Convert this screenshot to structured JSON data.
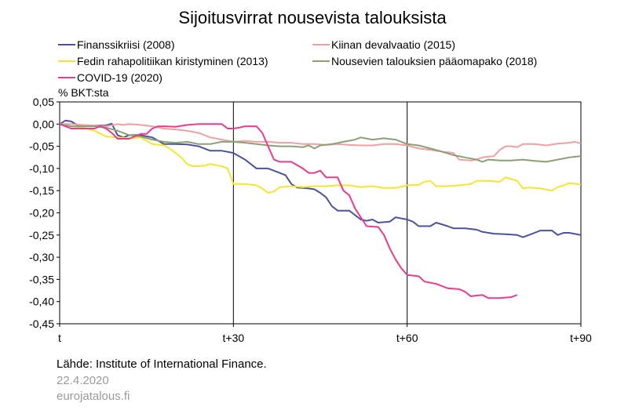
{
  "chart_data": {
    "type": "line",
    "title": "Sijoitusvirrat nousevista talouksista",
    "ylabel": "% BKT:sta",
    "xlabel": "",
    "xlim": [
      0,
      90
    ],
    "ylim": [
      -0.45,
      0.05
    ],
    "yticks": [
      "0,05",
      "0,00",
      "-0,05",
      "-0,10",
      "-0,15",
      "-0,20",
      "-0,25",
      "-0,30",
      "-0,35",
      "-0,40",
      "-0,45"
    ],
    "ytick_values": [
      0.05,
      0.0,
      -0.05,
      -0.1,
      -0.15,
      -0.2,
      -0.25,
      -0.3,
      -0.35,
      -0.4,
      -0.45
    ],
    "xticks": [
      {
        "value": 0,
        "label": "t"
      },
      {
        "value": 30,
        "label": "t+30"
      },
      {
        "value": 60,
        "label": "t+60"
      },
      {
        "value": 90,
        "label": "t+90"
      }
    ],
    "grid": "vertical-at-30-60",
    "legend_position": "top",
    "series": [
      {
        "name": "Finanssikriisi (2008)",
        "color": "#4a52a0",
        "points": [
          [
            0,
            0
          ],
          [
            1,
            0.008
          ],
          [
            2,
            0.006
          ],
          [
            3,
            -0.002
          ],
          [
            4,
            -0.004
          ],
          [
            6,
            -0.003
          ],
          [
            8,
            -0.003
          ],
          [
            9,
            0.001
          ],
          [
            10,
            -0.025
          ],
          [
            11,
            -0.03
          ],
          [
            12,
            -0.025
          ],
          [
            14,
            -0.025
          ],
          [
            16,
            -0.03
          ],
          [
            18,
            -0.045
          ],
          [
            20,
            -0.045
          ],
          [
            22,
            -0.046
          ],
          [
            24,
            -0.05
          ],
          [
            26,
            -0.06
          ],
          [
            28,
            -0.06
          ],
          [
            30,
            -0.065
          ],
          [
            32,
            -0.08
          ],
          [
            34,
            -0.1
          ],
          [
            36,
            -0.1
          ],
          [
            38,
            -0.11
          ],
          [
            39,
            -0.115
          ],
          [
            40,
            -0.135
          ],
          [
            41,
            -0.143
          ],
          [
            43,
            -0.145
          ],
          [
            44,
            -0.147
          ],
          [
            45,
            -0.155
          ],
          [
            46,
            -0.165
          ],
          [
            47,
            -0.185
          ],
          [
            48,
            -0.195
          ],
          [
            50,
            -0.195
          ],
          [
            52,
            -0.215
          ],
          [
            53,
            -0.218
          ],
          [
            54,
            -0.215
          ],
          [
            55,
            -0.222
          ],
          [
            57,
            -0.22
          ],
          [
            58,
            -0.21
          ],
          [
            60,
            -0.215
          ],
          [
            61,
            -0.22
          ],
          [
            62,
            -0.23
          ],
          [
            64,
            -0.23
          ],
          [
            65,
            -0.222
          ],
          [
            67,
            -0.23
          ],
          [
            68,
            -0.235
          ],
          [
            70,
            -0.235
          ],
          [
            72,
            -0.238
          ],
          [
            73,
            -0.243
          ],
          [
            75,
            -0.247
          ],
          [
            77,
            -0.248
          ],
          [
            79,
            -0.25
          ],
          [
            80,
            -0.255
          ],
          [
            81,
            -0.25
          ],
          [
            82,
            -0.245
          ],
          [
            83,
            -0.24
          ],
          [
            85,
            -0.24
          ],
          [
            86,
            -0.25
          ],
          [
            87,
            -0.245
          ],
          [
            88,
            -0.245
          ],
          [
            90,
            -0.25
          ]
        ]
      },
      {
        "name": "Kiinan devalvaatio (2015)",
        "color": "#f0a0a0",
        "points": [
          [
            0,
            0
          ],
          [
            2,
            0
          ],
          [
            4,
            -0.002
          ],
          [
            6,
            -0.003
          ],
          [
            8,
            -0.005
          ],
          [
            10,
            0.0
          ],
          [
            11,
            -0.002
          ],
          [
            12,
            0.0
          ],
          [
            14,
            -0.002
          ],
          [
            16,
            -0.005
          ],
          [
            18,
            -0.01
          ],
          [
            20,
            -0.012
          ],
          [
            22,
            -0.015
          ],
          [
            24,
            -0.02
          ],
          [
            26,
            -0.03
          ],
          [
            28,
            -0.035
          ],
          [
            30,
            -0.04
          ],
          [
            32,
            -0.038
          ],
          [
            34,
            -0.04
          ],
          [
            36,
            -0.04
          ],
          [
            38,
            -0.042
          ],
          [
            40,
            -0.042
          ],
          [
            42,
            -0.045
          ],
          [
            44,
            -0.045
          ],
          [
            46,
            -0.047
          ],
          [
            48,
            -0.045
          ],
          [
            50,
            -0.047
          ],
          [
            52,
            -0.048
          ],
          [
            54,
            -0.048
          ],
          [
            56,
            -0.045
          ],
          [
            58,
            -0.045
          ],
          [
            60,
            -0.048
          ],
          [
            62,
            -0.055
          ],
          [
            64,
            -0.058
          ],
          [
            66,
            -0.062
          ],
          [
            68,
            -0.065
          ],
          [
            69,
            -0.08
          ],
          [
            71,
            -0.082
          ],
          [
            72,
            -0.08
          ],
          [
            73,
            -0.075
          ],
          [
            75,
            -0.072
          ],
          [
            76,
            -0.058
          ],
          [
            77,
            -0.05
          ],
          [
            78,
            -0.05
          ],
          [
            79,
            -0.052
          ],
          [
            80,
            -0.045
          ],
          [
            82,
            -0.045
          ],
          [
            84,
            -0.048
          ],
          [
            86,
            -0.044
          ],
          [
            88,
            -0.042
          ],
          [
            89,
            -0.04
          ],
          [
            90,
            -0.044
          ]
        ]
      },
      {
        "name": "Fedin rahapolitiikan kiristyminen (2013)",
        "color": "#f5e530",
        "points": [
          [
            0,
            0
          ],
          [
            2,
            -0.005
          ],
          [
            4,
            -0.008
          ],
          [
            6,
            -0.015
          ],
          [
            8,
            -0.028
          ],
          [
            10,
            -0.03
          ],
          [
            12,
            -0.032
          ],
          [
            14,
            -0.03
          ],
          [
            16,
            -0.045
          ],
          [
            18,
            -0.048
          ],
          [
            19,
            -0.055
          ],
          [
            20,
            -0.065
          ],
          [
            21,
            -0.075
          ],
          [
            22,
            -0.09
          ],
          [
            23,
            -0.095
          ],
          [
            25,
            -0.094
          ],
          [
            26,
            -0.09
          ],
          [
            28,
            -0.095
          ],
          [
            29,
            -0.1
          ],
          [
            30,
            -0.135
          ],
          [
            32,
            -0.135
          ],
          [
            34,
            -0.138
          ],
          [
            35,
            -0.145
          ],
          [
            36,
            -0.155
          ],
          [
            37,
            -0.152
          ],
          [
            38,
            -0.142
          ],
          [
            40,
            -0.14
          ],
          [
            42,
            -0.142
          ],
          [
            44,
            -0.14
          ],
          [
            46,
            -0.14
          ],
          [
            48,
            -0.138
          ],
          [
            50,
            -0.138
          ],
          [
            52,
            -0.142
          ],
          [
            54,
            -0.14
          ],
          [
            56,
            -0.144
          ],
          [
            58,
            -0.144
          ],
          [
            60,
            -0.138
          ],
          [
            62,
            -0.137
          ],
          [
            63,
            -0.13
          ],
          [
            64,
            -0.128
          ],
          [
            65,
            -0.14
          ],
          [
            67,
            -0.14
          ],
          [
            69,
            -0.138
          ],
          [
            71,
            -0.135
          ],
          [
            72,
            -0.128
          ],
          [
            74,
            -0.128
          ],
          [
            76,
            -0.13
          ],
          [
            77,
            -0.12
          ],
          [
            79,
            -0.128
          ],
          [
            80,
            -0.145
          ],
          [
            81,
            -0.143
          ],
          [
            83,
            -0.145
          ],
          [
            85,
            -0.15
          ],
          [
            86,
            -0.142
          ],
          [
            87,
            -0.138
          ],
          [
            88,
            -0.133
          ],
          [
            90,
            -0.136
          ]
        ]
      },
      {
        "name": "Nousevien talouksien pääomapako (2018)",
        "color": "#8aa078",
        "points": [
          [
            0,
            0
          ],
          [
            2,
            -0.005
          ],
          [
            4,
            -0.005
          ],
          [
            6,
            -0.005
          ],
          [
            8,
            -0.008
          ],
          [
            10,
            -0.015
          ],
          [
            12,
            -0.025
          ],
          [
            14,
            -0.028
          ],
          [
            16,
            -0.035
          ],
          [
            18,
            -0.04
          ],
          [
            20,
            -0.042
          ],
          [
            22,
            -0.04
          ],
          [
            24,
            -0.045
          ],
          [
            26,
            -0.045
          ],
          [
            28,
            -0.04
          ],
          [
            30,
            -0.04
          ],
          [
            32,
            -0.042
          ],
          [
            34,
            -0.045
          ],
          [
            36,
            -0.048
          ],
          [
            38,
            -0.05
          ],
          [
            40,
            -0.05
          ],
          [
            42,
            -0.052
          ],
          [
            43,
            -0.048
          ],
          [
            44,
            -0.055
          ],
          [
            45,
            -0.048
          ],
          [
            47,
            -0.045
          ],
          [
            49,
            -0.04
          ],
          [
            51,
            -0.035
          ],
          [
            52,
            -0.03
          ],
          [
            54,
            -0.035
          ],
          [
            56,
            -0.032
          ],
          [
            58,
            -0.035
          ],
          [
            60,
            -0.045
          ],
          [
            62,
            -0.048
          ],
          [
            64,
            -0.055
          ],
          [
            66,
            -0.062
          ],
          [
            68,
            -0.07
          ],
          [
            70,
            -0.075
          ],
          [
            72,
            -0.08
          ],
          [
            73,
            -0.085
          ],
          [
            74,
            -0.08
          ],
          [
            76,
            -0.082
          ],
          [
            78,
            -0.082
          ],
          [
            80,
            -0.08
          ],
          [
            82,
            -0.083
          ],
          [
            84,
            -0.085
          ],
          [
            86,
            -0.08
          ],
          [
            88,
            -0.075
          ],
          [
            90,
            -0.072
          ]
        ]
      },
      {
        "name": "COVID-19 (2020)",
        "color": "#e83c8c",
        "points": [
          [
            0,
            0
          ],
          [
            2,
            -0.01
          ],
          [
            4,
            -0.01
          ],
          [
            6,
            -0.01
          ],
          [
            7,
            -0.005
          ],
          [
            8,
            -0.01
          ],
          [
            9,
            -0.02
          ],
          [
            10,
            -0.033
          ],
          [
            12,
            -0.033
          ],
          [
            14,
            -0.022
          ],
          [
            15,
            -0.022
          ],
          [
            16,
            -0.01
          ],
          [
            17,
            -0.005
          ],
          [
            18,
            -0.005
          ],
          [
            20,
            -0.006
          ],
          [
            22,
            -0.002
          ],
          [
            24,
            0.0
          ],
          [
            26,
            0.0
          ],
          [
            28,
            0.0
          ],
          [
            29,
            -0.01
          ],
          [
            30,
            -0.01
          ],
          [
            31,
            -0.008
          ],
          [
            32,
            -0.005
          ],
          [
            34,
            -0.005
          ],
          [
            35,
            -0.02
          ],
          [
            36,
            -0.05
          ],
          [
            37,
            -0.08
          ],
          [
            38,
            -0.085
          ],
          [
            40,
            -0.085
          ],
          [
            42,
            -0.1
          ],
          [
            43,
            -0.11
          ],
          [
            44,
            -0.11
          ],
          [
            45,
            -0.105
          ],
          [
            46,
            -0.12
          ],
          [
            48,
            -0.12
          ],
          [
            49,
            -0.15
          ],
          [
            50,
            -0.16
          ],
          [
            51,
            -0.19
          ],
          [
            52,
            -0.21
          ],
          [
            53,
            -0.23
          ],
          [
            55,
            -0.232
          ],
          [
            56,
            -0.25
          ],
          [
            57,
            -0.28
          ],
          [
            58,
            -0.305
          ],
          [
            59,
            -0.325
          ],
          [
            60,
            -0.34
          ],
          [
            62,
            -0.343
          ],
          [
            63,
            -0.355
          ],
          [
            65,
            -0.36
          ],
          [
            67,
            -0.37
          ],
          [
            69,
            -0.372
          ],
          [
            70,
            -0.378
          ],
          [
            71,
            -0.388
          ],
          [
            73,
            -0.385
          ],
          [
            74,
            -0.392
          ],
          [
            76,
            -0.392
          ],
          [
            78,
            -0.39
          ],
          [
            79,
            -0.385
          ]
        ]
      }
    ]
  },
  "footer": {
    "source": "Lähde: Institute of International Finance.",
    "date": "22.4.2020",
    "site": "eurojatalous.fi"
  }
}
